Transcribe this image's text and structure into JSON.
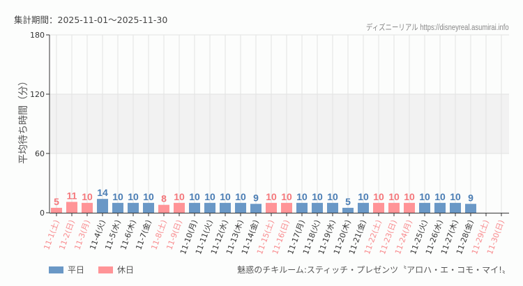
{
  "header": {
    "period_label": "集計期間：2025-11-01〜2025-11-30",
    "credit": "ディズニーリアル https://disneyreal.asumirai.info"
  },
  "legend": {
    "weekday_label": "平日",
    "holiday_label": "休日",
    "weekday_color": "#6a98c6",
    "holiday_color": "#ff9497"
  },
  "footer": {
    "attraction": "魅惑のチキルーム:スティッチ・プレゼンツ〝アロハ・エ・コモ・マイ!〟"
  },
  "chart_data": {
    "type": "bar",
    "title": "集計期間：2025-11-01〜2025-11-30",
    "xlabel": "",
    "ylabel": "平均待ち時間（分）",
    "ylim": [
      0,
      180
    ],
    "yticks": [
      0,
      60,
      120,
      180
    ],
    "grid": true,
    "legend_position": "bottom-left",
    "categories": [
      "11-1(土)",
      "11-2(日)",
      "11-3(月)",
      "11-4(火)",
      "11-5(水)",
      "11-6(木)",
      "11-7(金)",
      "11-8(土)",
      "11-9(日)",
      "11-10(月)",
      "11-11(火)",
      "11-12(水)",
      "11-13(木)",
      "11-14(金)",
      "11-15(土)",
      "11-16(日)",
      "11-17(月)",
      "11-18(火)",
      "11-19(水)",
      "11-20(木)",
      "11-21(金)",
      "11-22(土)",
      "11-23(日)",
      "11-24(月)",
      "11-25(火)",
      "11-26(水)",
      "11-27(木)",
      "11-28(金)",
      "11-29(土)",
      "11-30(日)"
    ],
    "values": [
      5,
      11,
      10,
      14,
      10,
      10,
      10,
      8,
      10,
      10,
      10,
      10,
      10,
      9,
      10,
      10,
      10,
      10,
      10,
      5,
      10,
      10,
      10,
      10,
      10,
      10,
      10,
      9,
      null,
      null
    ],
    "day_type": [
      "holiday",
      "holiday",
      "holiday",
      "weekday",
      "weekday",
      "weekday",
      "weekday",
      "holiday",
      "holiday",
      "weekday",
      "weekday",
      "weekday",
      "weekday",
      "weekday",
      "holiday",
      "holiday",
      "weekday",
      "weekday",
      "weekday",
      "weekday",
      "weekday",
      "holiday",
      "holiday",
      "holiday",
      "weekday",
      "weekday",
      "weekday",
      "weekday",
      "holiday",
      "holiday"
    ],
    "series": [
      {
        "name": "平日",
        "color": "#6a98c6"
      },
      {
        "name": "休日",
        "color": "#ff9497"
      }
    ]
  }
}
